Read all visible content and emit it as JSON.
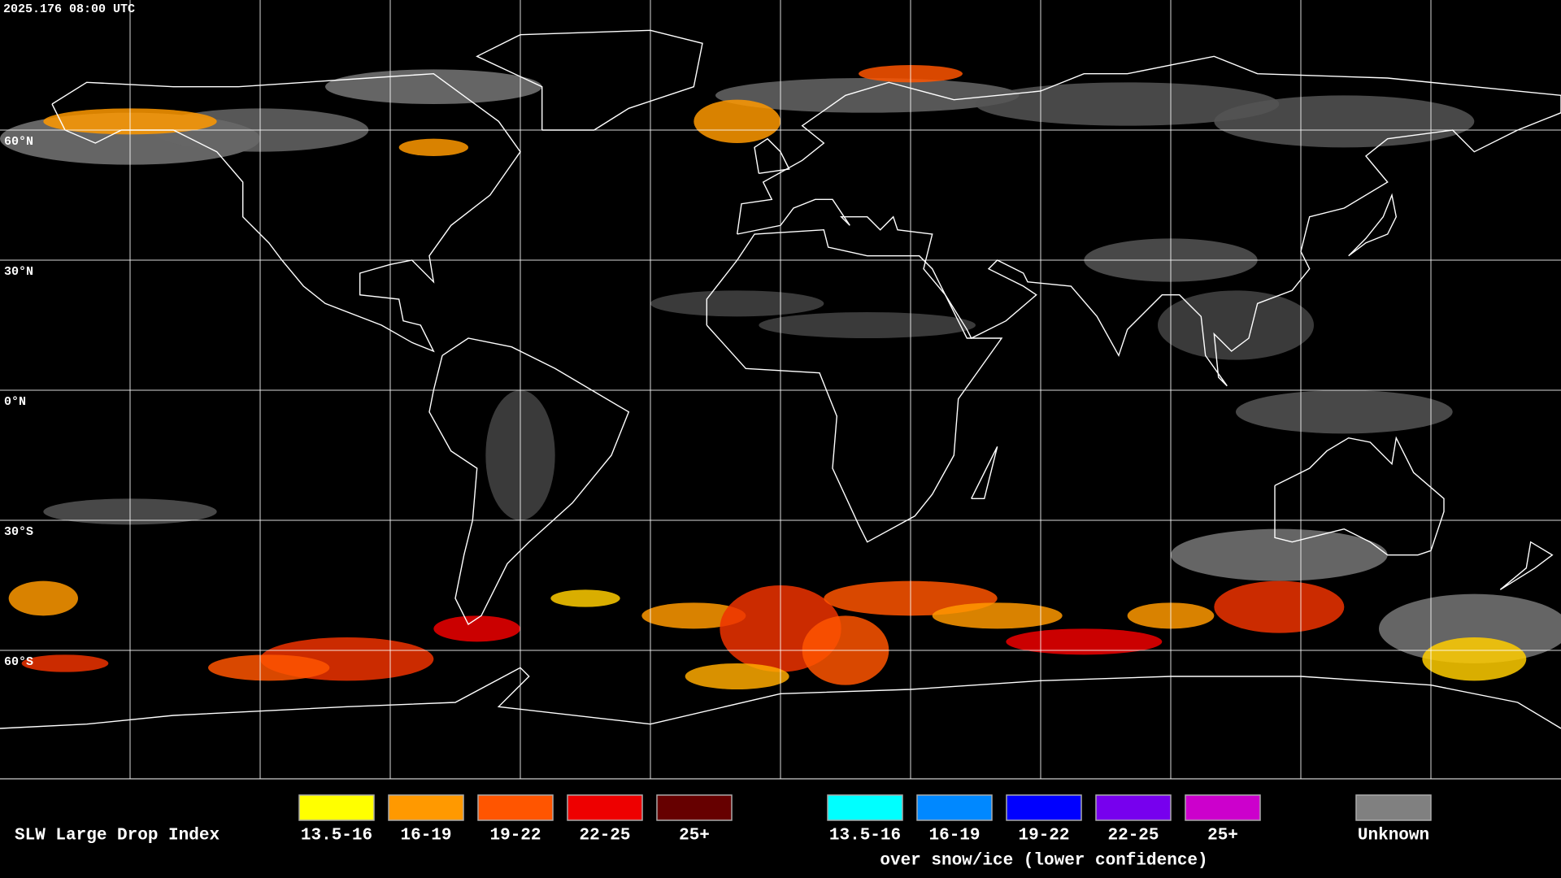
{
  "timestamp": "2025.176 08:00 UTC",
  "latitude_labels": [
    "60°N",
    "30°N",
    "0°N",
    "30°S",
    "60°S"
  ],
  "legend": {
    "title": "SLW Large Drop Index",
    "items": [
      {
        "label": "13.5-16",
        "color": "#ffff00"
      },
      {
        "label": "16-19",
        "color": "#ff9900"
      },
      {
        "label": "19-22",
        "color": "#ff5500"
      },
      {
        "label": "22-25",
        "color": "#ee0000"
      },
      {
        "label": "25+",
        "color": "#660000"
      }
    ],
    "snow_items": [
      {
        "label": "13.5-16",
        "color": "#00ffff"
      },
      {
        "label": "16-19",
        "color": "#0088ff"
      },
      {
        "label": "19-22",
        "color": "#0000ff"
      },
      {
        "label": "22-25",
        "color": "#7700ee"
      },
      {
        "label": "25+",
        "color": "#cc00cc"
      }
    ],
    "snow_caption": "over snow/ice (lower confidence)",
    "unknown": {
      "label": "Unknown",
      "color": "#808080"
    }
  }
}
